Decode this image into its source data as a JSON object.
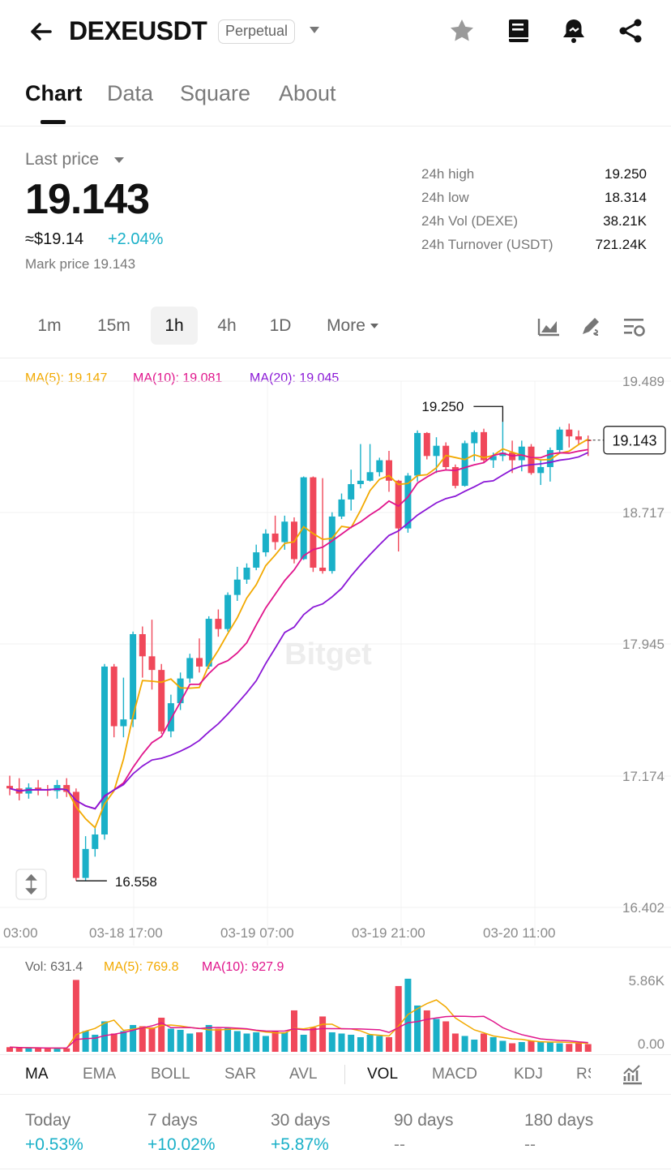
{
  "header": {
    "symbol": "DEXEUSDT",
    "badge": "Perpetual",
    "icons": [
      "back-arrow-icon",
      "star-icon",
      "book-icon",
      "bell-icon",
      "share-icon"
    ]
  },
  "tabs": [
    "Chart",
    "Data",
    "Square",
    "About"
  ],
  "summary": {
    "last_price_label": "Last price",
    "last_price": "19.143",
    "usd_price": "≈$19.14",
    "change": "+2.04%",
    "mark_price": "Mark price 19.143"
  },
  "stats": [
    {
      "label": "24h high",
      "value": "19.250"
    },
    {
      "label": "24h low",
      "value": "18.314"
    },
    {
      "label": "24h Vol (DEXE)",
      "value": "38.21K"
    },
    {
      "label": "24h Turnover (USDT)",
      "value": "721.24K"
    }
  ],
  "intervals": [
    "1m",
    "15m",
    "1h",
    "4h",
    "1D",
    "More"
  ],
  "selected_interval": "1h",
  "chart": {
    "ma_legend": {
      "ma5": "MA(5): 19.147",
      "ma10": "MA(10): 19.081",
      "ma20": "MA(20): 19.045"
    },
    "y_ticks": [
      "19.489",
      "18.717",
      "17.945",
      "17.174",
      "16.402"
    ],
    "x_ticks": [
      "03:00",
      "03-18 17:00",
      "03-19 07:00",
      "03-19 21:00",
      "03-20 11:00"
    ],
    "high_marker": "19.250",
    "low_marker": "16.558",
    "current_price_tag": "19.143",
    "watermark": "Bitget",
    "vol_legend": {
      "vol": "Vol: 631.4",
      "ma5": "MA(5): 769.8",
      "ma10": "MA(10): 927.9"
    },
    "vol_ticks": [
      "5.86K",
      "0.00"
    ]
  },
  "chart_data": {
    "type": "candlestick",
    "ylim": [
      16.402,
      19.489
    ],
    "vol_ylim": [
      0,
      5860
    ],
    "candles": [
      [
        17.115,
        17.1,
        17.175,
        17.06,
        380
      ],
      [
        17.1,
        17.07,
        17.16,
        17.03,
        320
      ],
      [
        17.07,
        17.105,
        17.13,
        17.04,
        300
      ],
      [
        17.105,
        17.095,
        17.15,
        17.06,
        290
      ],
      [
        17.095,
        17.09,
        17.12,
        17.055,
        260
      ],
      [
        17.085,
        17.12,
        17.15,
        17.04,
        310
      ],
      [
        17.12,
        17.08,
        17.16,
        17.05,
        280
      ],
      [
        17.08,
        16.575,
        17.1,
        16.558,
        5900
      ],
      [
        16.575,
        16.745,
        16.82,
        16.56,
        1700
      ],
      [
        16.745,
        16.83,
        16.88,
        16.7,
        1400
      ],
      [
        16.83,
        17.815,
        17.83,
        16.8,
        2500
      ],
      [
        17.815,
        17.465,
        17.83,
        17.4,
        1500
      ],
      [
        17.465,
        17.505,
        17.75,
        17.4,
        1700
      ],
      [
        17.505,
        18.005,
        18.02,
        17.46,
        2200
      ],
      [
        18.005,
        17.875,
        18.05,
        17.75,
        2100
      ],
      [
        17.875,
        17.795,
        18.09,
        17.68,
        2000
      ],
      [
        17.795,
        17.435,
        17.83,
        17.42,
        2800
      ],
      [
        17.435,
        17.6,
        17.65,
        17.4,
        1900
      ],
      [
        17.6,
        17.745,
        17.78,
        17.56,
        1800
      ],
      [
        17.745,
        17.865,
        17.89,
        17.72,
        1500
      ],
      [
        17.865,
        17.815,
        17.98,
        17.78,
        1600
      ],
      [
        17.815,
        18.095,
        18.11,
        17.8,
        2200
      ],
      [
        18.095,
        18.035,
        18.15,
        17.99,
        1900
      ],
      [
        18.035,
        18.235,
        18.25,
        18.02,
        2000
      ],
      [
        18.235,
        18.325,
        18.4,
        18.2,
        1700
      ],
      [
        18.325,
        18.395,
        18.42,
        18.3,
        1500
      ],
      [
        18.395,
        18.485,
        18.53,
        18.38,
        1600
      ],
      [
        18.485,
        18.595,
        18.62,
        18.46,
        1300
      ],
      [
        18.595,
        18.545,
        18.7,
        18.5,
        1700
      ],
      [
        18.545,
        18.665,
        18.7,
        18.5,
        1600
      ],
      [
        18.665,
        18.445,
        18.69,
        18.42,
        3400
      ],
      [
        18.445,
        18.925,
        18.93,
        18.44,
        1400
      ],
      [
        18.925,
        18.395,
        18.93,
        18.37,
        2000
      ],
      [
        18.395,
        18.375,
        18.92,
        18.36,
        2900
      ],
      [
        18.375,
        18.695,
        18.72,
        18.36,
        1600
      ],
      [
        18.695,
        18.795,
        18.83,
        18.68,
        1500
      ],
      [
        18.795,
        18.885,
        18.97,
        18.73,
        1400
      ],
      [
        18.885,
        18.905,
        19.12,
        18.86,
        1200
      ],
      [
        18.905,
        18.955,
        19.12,
        18.9,
        1400
      ],
      [
        18.955,
        19.025,
        19.04,
        18.93,
        1300
      ],
      [
        19.025,
        18.905,
        19.08,
        18.84,
        1200
      ],
      [
        18.905,
        18.625,
        18.91,
        18.49,
        5400
      ],
      [
        18.625,
        18.935,
        18.95,
        18.6,
        6000
      ],
      [
        18.935,
        19.185,
        19.2,
        18.9,
        3800
      ],
      [
        19.185,
        19.05,
        19.19,
        19.03,
        3400
      ],
      [
        19.05,
        19.11,
        19.16,
        18.95,
        2700
      ],
      [
        19.11,
        18.985,
        19.13,
        18.97,
        2500
      ],
      [
        18.985,
        18.875,
        19.0,
        18.86,
        1500
      ],
      [
        18.875,
        19.125,
        19.14,
        18.87,
        1300
      ],
      [
        19.125,
        19.19,
        19.2,
        19.02,
        1000
      ],
      [
        19.19,
        19.025,
        19.21,
        19.01,
        1500
      ],
      [
        19.025,
        19.05,
        19.07,
        18.98,
        1200
      ],
      [
        19.05,
        19.07,
        19.25,
        19.02,
        900
      ],
      [
        19.07,
        19.025,
        19.14,
        18.95,
        700
      ],
      [
        19.025,
        19.105,
        19.14,
        18.96,
        800
      ],
      [
        19.105,
        18.95,
        19.12,
        18.94,
        900
      ],
      [
        18.95,
        18.985,
        19.03,
        18.88,
        800
      ],
      [
        18.985,
        19.085,
        19.1,
        18.9,
        800
      ],
      [
        19.085,
        19.205,
        19.22,
        19.07,
        700
      ],
      [
        19.205,
        19.165,
        19.24,
        19.1,
        650
      ],
      [
        19.165,
        19.145,
        19.2,
        19.12,
        700
      ],
      [
        19.145,
        19.143,
        19.17,
        19.05,
        631
      ]
    ]
  },
  "indicators": {
    "main": [
      "MA",
      "EMA",
      "BOLL",
      "SAR",
      "AVL"
    ],
    "sub": [
      "VOL",
      "MACD",
      "KDJ",
      "RSI"
    ]
  },
  "performance": [
    {
      "label": "Today",
      "value": "+0.53%"
    },
    {
      "label": "7 days",
      "value": "+10.02%"
    },
    {
      "label": "30 days",
      "value": "+5.87%"
    },
    {
      "label": "90 days",
      "value": "--"
    },
    {
      "label": "180 days",
      "value": "--"
    }
  ],
  "colors": {
    "up": "#1ab0c8",
    "down": "#f0485a",
    "ma5": "#f2a900",
    "ma10": "#e0158c",
    "ma20": "#8a17d6"
  }
}
